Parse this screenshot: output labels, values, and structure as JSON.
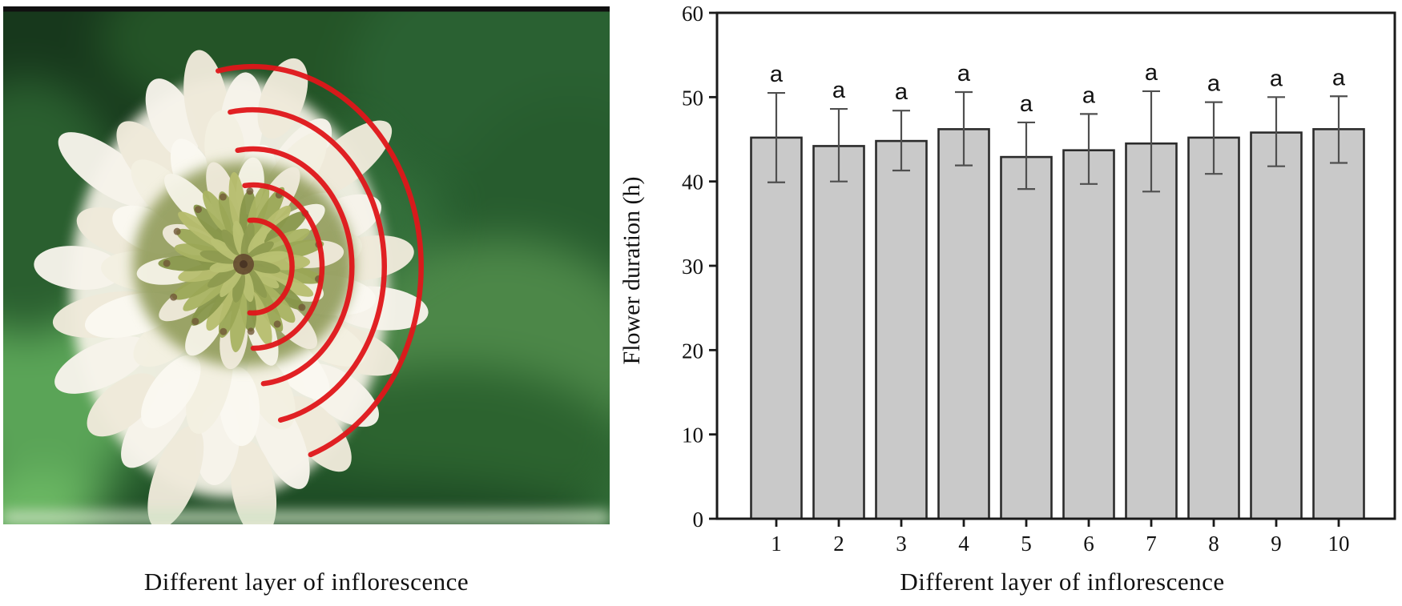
{
  "left_panel": {
    "caption": "Different layer of inflorescence",
    "photo": {
      "subject": "white-clover-inflorescence-top-view",
      "overlay": "concentric-red-arcs-marking-flower-layers",
      "arc_color": "#e0161a",
      "background_green": "#336f3a",
      "flower_white": "#f5f2e7",
      "floret_green": "#9aa755",
      "top_bar_color": "#101010"
    }
  },
  "chart_data": {
    "type": "bar",
    "title": "",
    "categories": [
      "1",
      "2",
      "3",
      "4",
      "5",
      "6",
      "7",
      "8",
      "9",
      "10"
    ],
    "values": [
      45.2,
      44.2,
      44.8,
      46.2,
      42.9,
      43.7,
      44.5,
      45.2,
      45.8,
      46.2
    ],
    "error_up": [
      5.3,
      4.4,
      3.6,
      4.4,
      4.1,
      4.3,
      6.2,
      4.2,
      4.2,
      3.9
    ],
    "error_down": [
      5.3,
      4.2,
      3.5,
      4.3,
      3.8,
      4.0,
      5.7,
      4.3,
      4.0,
      4.0
    ],
    "significance_letters": [
      "a",
      "a",
      "a",
      "a",
      "a",
      "a",
      "a",
      "a",
      "a",
      "a"
    ],
    "xlabel": "Different layer of inflorescence",
    "ylabel": "Flower duration (h)",
    "ylim": [
      0,
      60
    ],
    "yticks": [
      0,
      10,
      20,
      30,
      40,
      50,
      60
    ],
    "grid": false,
    "legend": "none",
    "bar_fill": "#c9c9c9",
    "bar_stroke": "#2b2b2b",
    "error_color": "#4f4f4f",
    "frame_color": "#1a1a1a",
    "text_color": "#111111"
  }
}
